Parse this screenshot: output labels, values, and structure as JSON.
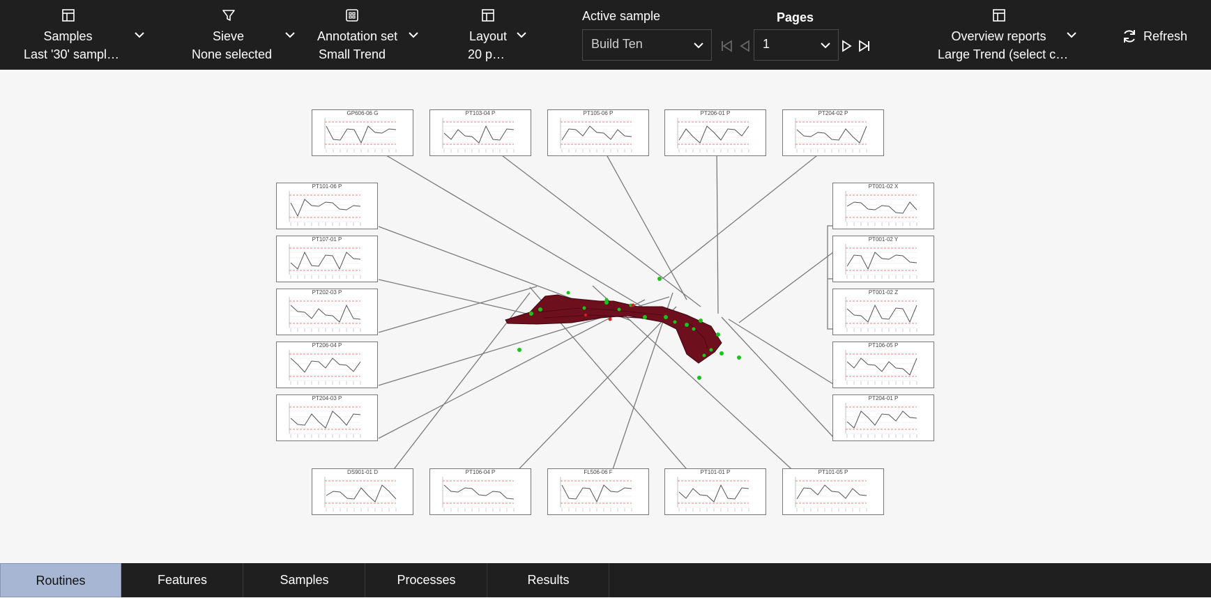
{
  "toolbar": {
    "samples": {
      "title": "Samples",
      "subtitle": "Last '30' sampl…",
      "icon": "layout-icon"
    },
    "sieve": {
      "title": "Sieve",
      "subtitle": "None selected",
      "icon": "filter-icon"
    },
    "annotation": {
      "title": "Annotation set",
      "subtitle": "Small Trend",
      "icon": "grid-icon"
    },
    "layout": {
      "title": "Layout",
      "subtitle": "20 p…",
      "icon": "layout-icon"
    },
    "active_sample": {
      "label": "Active sample",
      "value": "Build Ten"
    },
    "pages": {
      "label": "Pages",
      "value": "1"
    },
    "overview": {
      "title": "Overview reports",
      "subtitle": "Large Trend (select c…",
      "icon": "layout-icon"
    },
    "refresh_label": "Refresh"
  },
  "thumbnails": [
    {
      "title": "GP606-06  G"
    },
    {
      "title": "PT103-04  P"
    },
    {
      "title": "PT105-06  P"
    },
    {
      "title": "PT206-01  P"
    },
    {
      "title": "PT204-02  P"
    },
    {
      "title": "PT101-06  P"
    },
    {
      "title": "PT107-01  P"
    },
    {
      "title": "PT202-03  P"
    },
    {
      "title": "PT206-04  P"
    },
    {
      "title": "PT204-03  P"
    },
    {
      "title": "PT001-02  X"
    },
    {
      "title": "PT001-02  Y"
    },
    {
      "title": "PT001-02  Z"
    },
    {
      "title": "PT106-05  P"
    },
    {
      "title": "PT204-01  P"
    },
    {
      "title": "DS901-01  D"
    },
    {
      "title": "PT106-04  P"
    },
    {
      "title": "FL506-06  F"
    },
    {
      "title": "PT101-01  P"
    },
    {
      "title": "PT101-05  P"
    }
  ],
  "tabs": [
    {
      "label": "Routines"
    },
    {
      "label": "Features"
    },
    {
      "label": "Samples"
    },
    {
      "label": "Processes"
    },
    {
      "label": "Results"
    }
  ],
  "colors": {
    "toolbar_bg": "#1f1f1f",
    "active_tab": "#a7b6d2",
    "part": "#6e0f1e",
    "marker": "#19c419",
    "limit_line": "#e25555"
  }
}
